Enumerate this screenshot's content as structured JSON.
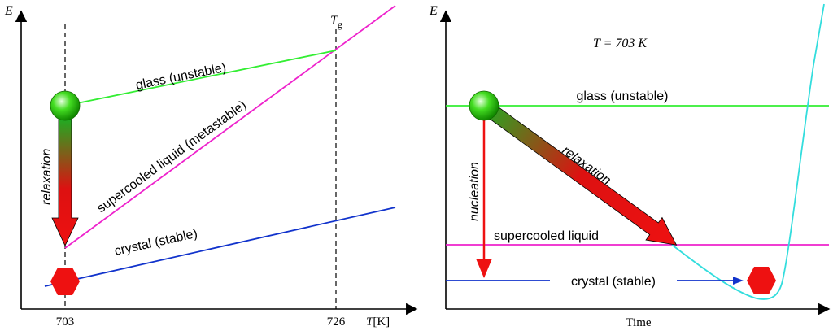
{
  "colors": {
    "glass": "#33ee33",
    "liquid": "#ee22cc",
    "crystal": "#1133cc",
    "curve": "#33dddd",
    "red": "#ee1111",
    "axis": "#000000"
  },
  "left_panel": {
    "y_axis_label": "E",
    "x_axis_label_var": "T",
    "x_axis_label_unit": "[K]",
    "tick_703": "703",
    "tick_726": "726",
    "tg_var": "T",
    "tg_sub": "g",
    "glass_label": "glass (unstable)",
    "liquid_label": "supercooled liquid (metastable)",
    "crystal_label": "crystal (stable)",
    "relaxation_label": "relaxation"
  },
  "right_panel": {
    "y_axis_label": "E",
    "x_axis_label": "Time",
    "temperature_note": "T = 703 K",
    "glass_label": "glass (unstable)",
    "liquid_label": "supercooled liquid",
    "crystal_label": "crystal (stable)",
    "relaxation_label": "relaxation",
    "nucleation_label": "nucleation"
  }
}
